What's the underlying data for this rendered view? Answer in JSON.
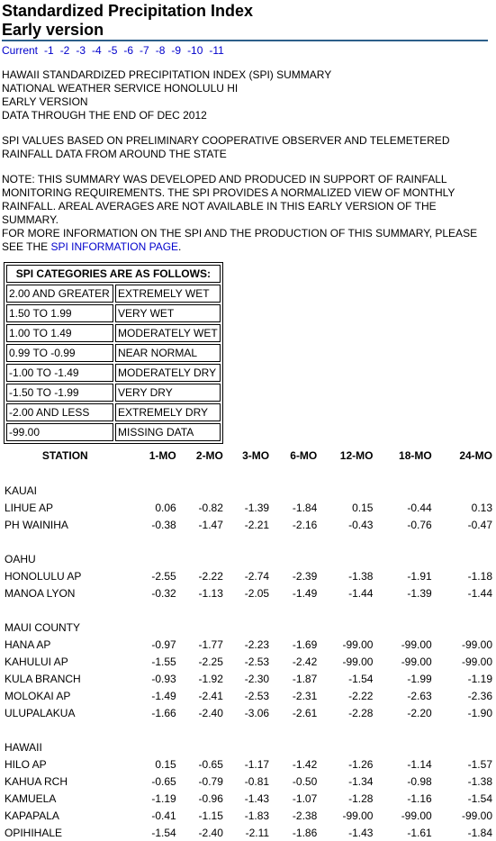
{
  "header": {
    "title_line1": "Standardized Precipitation Index",
    "title_line2": "Early version"
  },
  "nav": [
    "Current",
    "-1",
    "-2",
    "-3",
    "-4",
    "-5",
    "-6",
    "-7",
    "-8",
    "-9",
    "-10",
    "-11"
  ],
  "summary_lines": [
    "HAWAII STANDARDIZED PRECIPITATION INDEX (SPI) SUMMARY",
    "NATIONAL WEATHER SERVICE HONOLULU HI",
    "EARLY VERSION",
    "DATA THROUGH THE END OF DEC 2012"
  ],
  "basis_lines": [
    "SPI VALUES BASED ON PRELIMINARY COOPERATIVE OBSERVER AND TELEMETERED",
    "RAINFALL DATA FROM AROUND THE STATE"
  ],
  "note_lines": [
    "NOTE: THIS SUMMARY WAS DEVELOPED AND PRODUCED IN SUPPORT OF RAINFALL",
    "MONITORING REQUIREMENTS. THE SPI PROVIDES A NORMALIZED VIEW OF MONTHLY",
    "RAINFALL. AREAL AVERAGES ARE NOT AVAILABLE IN THIS EARLY VERSION OF THE SUMMARY.",
    "FOR MORE INFORMATION ON THE SPI AND THE PRODUCTION OF THIS SUMMARY, PLEASE"
  ],
  "note_last": {
    "prefix": "SEE THE ",
    "link": "SPI INFORMATION PAGE",
    "suffix": "."
  },
  "categories": {
    "heading": "SPI CATEGORIES ARE AS FOLLOWS:",
    "rows": [
      [
        "2.00 AND GREATER",
        "EXTREMELY WET"
      ],
      [
        "1.50 TO 1.99",
        "VERY WET"
      ],
      [
        "1.00 TO 1.49",
        "MODERATELY WET"
      ],
      [
        "0.99 TO -0.99",
        "NEAR NORMAL"
      ],
      [
        "-1.00 TO -1.49",
        "MODERATELY DRY"
      ],
      [
        "-1.50 TO -1.99",
        "VERY DRY"
      ],
      [
        "-2.00 AND LESS",
        "EXTREMELY DRY"
      ],
      [
        "-99.00",
        "MISSING DATA"
      ]
    ]
  },
  "spi_table": {
    "headers": [
      "STATION",
      "1-MO",
      "2-MO",
      "3-MO",
      "6-MO",
      "12-MO",
      "18-MO",
      "24-MO"
    ],
    "groups": [
      {
        "name": "KAUAI",
        "stations": [
          [
            "LIHUE AP",
            "0.06",
            "-0.82",
            "-1.39",
            "-1.84",
            "0.15",
            "-0.44",
            "0.13"
          ],
          [
            "PH WAINIHA",
            "-0.38",
            "-1.47",
            "-2.21",
            "-2.16",
            "-0.43",
            "-0.76",
            "-0.47"
          ]
        ]
      },
      {
        "name": "OAHU",
        "stations": [
          [
            "HONOLULU AP",
            "-2.55",
            "-2.22",
            "-2.74",
            "-2.39",
            "-1.38",
            "-1.91",
            "-1.18"
          ],
          [
            "MANOA LYON",
            "-0.32",
            "-1.13",
            "-2.05",
            "-1.49",
            "-1.44",
            "-1.39",
            "-1.44"
          ]
        ]
      },
      {
        "name": "MAUI COUNTY",
        "stations": [
          [
            "HANA AP",
            "-0.97",
            "-1.77",
            "-2.23",
            "-1.69",
            "-99.00",
            "-99.00",
            "-99.00"
          ],
          [
            "KAHULUI AP",
            "-1.55",
            "-2.25",
            "-2.53",
            "-2.42",
            "-99.00",
            "-99.00",
            "-99.00"
          ],
          [
            "KULA BRANCH",
            "-0.93",
            "-1.92",
            "-2.30",
            "-1.87",
            "-1.54",
            "-1.99",
            "-1.19"
          ],
          [
            "MOLOKAI AP",
            "-1.49",
            "-2.41",
            "-2.53",
            "-2.31",
            "-2.22",
            "-2.63",
            "-2.36"
          ],
          [
            "ULUPALAKUA",
            "-1.66",
            "-2.40",
            "-3.06",
            "-2.61",
            "-2.28",
            "-2.20",
            "-1.90"
          ]
        ]
      },
      {
        "name": "HAWAII",
        "stations": [
          [
            "HILO AP",
            "0.15",
            "-0.65",
            "-1.17",
            "-1.42",
            "-1.26",
            "-1.14",
            "-1.57"
          ],
          [
            "KAHUA RCH",
            "-0.65",
            "-0.79",
            "-0.81",
            "-0.50",
            "-1.34",
            "-0.98",
            "-1.38"
          ],
          [
            "KAMUELA",
            "-1.19",
            "-0.96",
            "-1.43",
            "-1.07",
            "-1.28",
            "-1.16",
            "-1.54"
          ],
          [
            "KAPAPALA",
            "-0.41",
            "-1.15",
            "-1.83",
            "-2.38",
            "-99.00",
            "-99.00",
            "-99.00"
          ],
          [
            "OPIHIHALE",
            "-1.54",
            "-2.40",
            "-2.11",
            "-1.86",
            "-1.43",
            "-1.61",
            "-1.84"
          ]
        ]
      }
    ]
  }
}
